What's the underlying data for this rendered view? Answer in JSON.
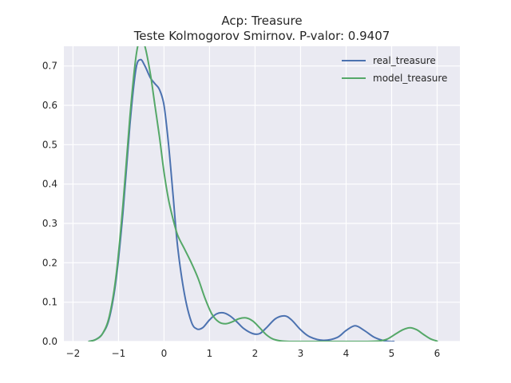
{
  "chart_data": {
    "type": "line",
    "title": "Acp: Treasure",
    "subtitle": "Teste Kolmogorov Smirnov. P-valor: 0.9407",
    "xlabel": "",
    "ylabel": "",
    "xlim": [
      -2.2,
      6.5
    ],
    "ylim": [
      0,
      0.75
    ],
    "xticks": [
      -2,
      -1,
      0,
      1,
      2,
      3,
      4,
      5,
      6
    ],
    "yticks": [
      0.0,
      0.1,
      0.2,
      0.3,
      0.4,
      0.5,
      0.6,
      0.7
    ],
    "grid": true,
    "legend_position": "top-right",
    "series": [
      {
        "name": "real_treasure",
        "color": "#4c72b0",
        "x": [
          -1.65,
          -1.5,
          -1.35,
          -1.2,
          -1.05,
          -0.9,
          -0.75,
          -0.62,
          -0.52,
          -0.42,
          -0.3,
          -0.2,
          -0.1,
          0.0,
          0.1,
          0.2,
          0.3,
          0.45,
          0.6,
          0.72,
          0.85,
          1.0,
          1.15,
          1.3,
          1.45,
          1.6,
          1.75,
          1.95,
          2.1,
          2.25,
          2.45,
          2.65,
          2.8,
          3.0,
          3.2,
          3.5,
          3.8,
          4.0,
          4.2,
          4.4,
          4.6,
          4.8,
          4.95,
          5.05
        ],
        "y": [
          0.0,
          0.005,
          0.02,
          0.06,
          0.16,
          0.33,
          0.55,
          0.69,
          0.716,
          0.7,
          0.67,
          0.655,
          0.64,
          0.6,
          0.5,
          0.37,
          0.24,
          0.12,
          0.05,
          0.032,
          0.035,
          0.055,
          0.07,
          0.073,
          0.065,
          0.05,
          0.033,
          0.02,
          0.02,
          0.035,
          0.058,
          0.065,
          0.055,
          0.03,
          0.012,
          0.003,
          0.01,
          0.028,
          0.04,
          0.028,
          0.012,
          0.003,
          0.0,
          0.0
        ]
      },
      {
        "name": "model_treasure",
        "color": "#55a868",
        "x": [
          -1.65,
          -1.5,
          -1.35,
          -1.2,
          -1.05,
          -0.9,
          -0.75,
          -0.62,
          -0.52,
          -0.42,
          -0.3,
          -0.2,
          -0.1,
          0.0,
          0.1,
          0.2,
          0.3,
          0.45,
          0.6,
          0.75,
          0.9,
          1.05,
          1.2,
          1.35,
          1.5,
          1.65,
          1.8,
          1.95,
          2.1,
          2.25,
          2.4,
          2.6,
          2.8,
          3.2,
          3.6,
          4.0,
          4.4,
          4.7,
          4.9,
          5.1,
          5.25,
          5.4,
          5.55,
          5.7,
          5.85,
          6.0
        ],
        "y": [
          0.0,
          0.005,
          0.02,
          0.065,
          0.17,
          0.35,
          0.57,
          0.72,
          0.77,
          0.75,
          0.68,
          0.6,
          0.52,
          0.43,
          0.36,
          0.31,
          0.27,
          0.235,
          0.2,
          0.16,
          0.11,
          0.07,
          0.05,
          0.045,
          0.05,
          0.058,
          0.06,
          0.052,
          0.035,
          0.017,
          0.006,
          0.001,
          0.0,
          0.0,
          0.0,
          0.0,
          0.0,
          0.001,
          0.006,
          0.02,
          0.03,
          0.035,
          0.03,
          0.018,
          0.007,
          0.001
        ]
      }
    ]
  }
}
